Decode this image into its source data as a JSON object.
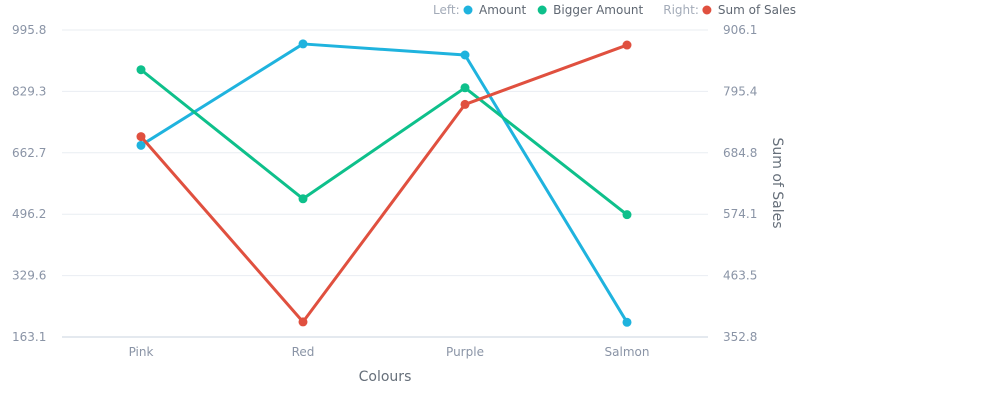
{
  "chart_data": {
    "type": "line",
    "xlabel": "Colours",
    "categories": [
      "Pink",
      "Red",
      "Purple",
      "Salmon"
    ],
    "left_axis": {
      "ylim": [
        163.1,
        995.8
      ],
      "ticks": [
        "995.8",
        "829.3",
        "662.7",
        "496.2",
        "329.6",
        "163.1"
      ],
      "tick_values": [
        995.8,
        829.3,
        662.7,
        496.2,
        329.6,
        163.1
      ]
    },
    "right_axis": {
      "label": "Sum of Sales",
      "ylim": [
        352.8,
        906.1
      ],
      "ticks": [
        "906.1",
        "795.4",
        "684.8",
        "574.1",
        "463.5",
        "352.8"
      ],
      "tick_values": [
        906.1,
        795.4,
        684.8,
        574.1,
        463.5,
        352.8
      ]
    },
    "series": [
      {
        "name": "Amount",
        "axis": "left",
        "color": "#1fb3de",
        "values": [
          683,
          958,
          928,
          203
        ]
      },
      {
        "name": "Bigger Amount",
        "axis": "left",
        "color": "#0ec08b",
        "values": [
          888,
          538,
          839,
          495
        ]
      },
      {
        "name": "Sum of Sales",
        "axis": "right",
        "color": "#e0503f",
        "values": [
          714,
          380,
          772,
          879
        ]
      }
    ],
    "legend": {
      "position": "top-right",
      "left_heading": "Left:",
      "right_heading": "Right:"
    },
    "grid": true
  }
}
